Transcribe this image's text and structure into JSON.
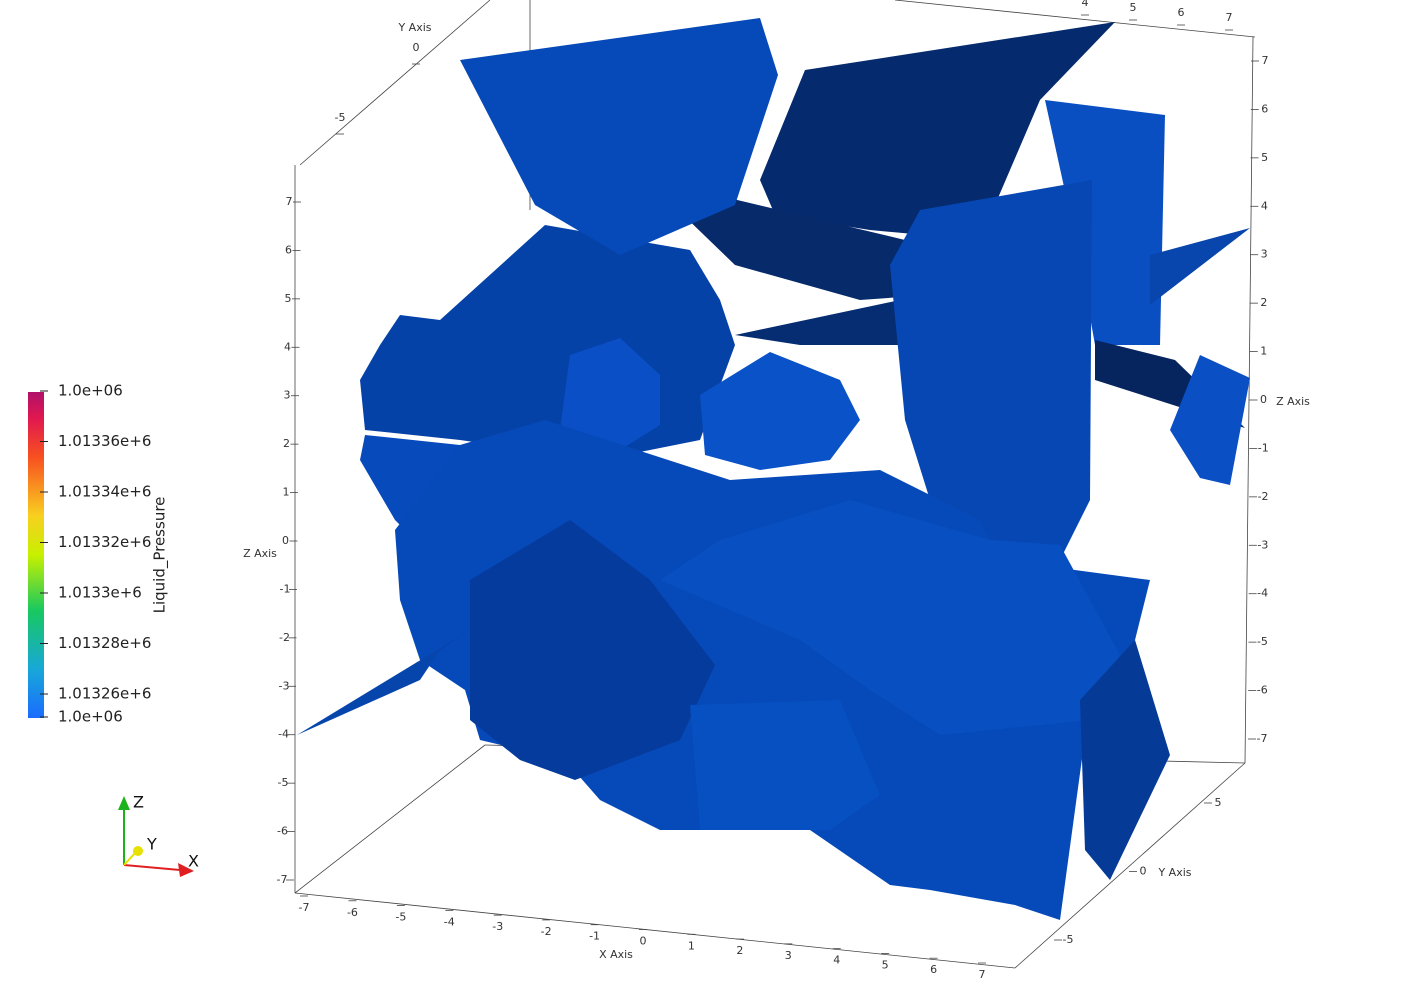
{
  "color_legend": {
    "title": "Liquid_Pressure",
    "labels": [
      "1.0e+06",
      "1.01336e+6",
      "1.01334e+6",
      "1.01332e+6",
      "1.0133e+6",
      "1.01328e+6",
      "1.01326e+6",
      "1.0e+06"
    ]
  },
  "axes": {
    "x_axis": {
      "title": "X Axis",
      "ticks": [
        "-7",
        "-6",
        "-5",
        "-4",
        "-3",
        "-2",
        "-1",
        "0",
        "1",
        "2",
        "3",
        "4",
        "5",
        "6",
        "7"
      ],
      "top_ticks": [
        "4",
        "5",
        "6",
        "7"
      ]
    },
    "y_axis_front": {
      "title": "Y Axis",
      "ticks": [
        "5",
        "0",
        "-5"
      ]
    },
    "y_axis_back": {
      "title": "Y Axis",
      "ticks": [
        "0",
        "-5"
      ]
    },
    "z_axis_left": {
      "title": "Z Axis",
      "ticks": [
        "7",
        "6",
        "5",
        "4",
        "3",
        "2",
        "1",
        "0",
        "-1",
        "-2",
        "-3",
        "-4",
        "-5",
        "-6",
        "-7"
      ]
    },
    "z_axis_right": {
      "title": "Z Axis",
      "ticks": [
        "7",
        "6",
        "5",
        "4",
        "3",
        "2",
        "1",
        "0",
        "-1",
        "-2",
        "-3",
        "-4",
        "-5",
        "-6",
        "-7"
      ]
    }
  },
  "orientation": {
    "z": "Z",
    "y": "Y",
    "x": "X"
  }
}
